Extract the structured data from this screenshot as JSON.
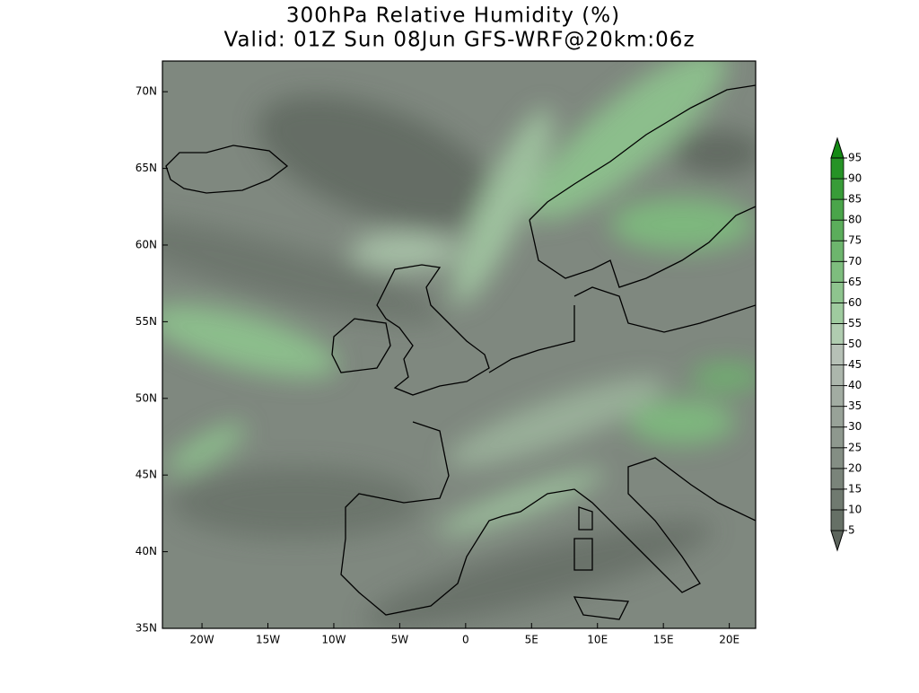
{
  "title": "300hPa Relative Humidity (%)",
  "subtitle": "Valid: 01Z Sun 08Jun GFS-WRF@20km:06z",
  "lon_range": [
    -23,
    22
  ],
  "lat_range": [
    35,
    72
  ],
  "lon_ticks": [
    {
      "value": -20,
      "label": "20W"
    },
    {
      "value": -15,
      "label": "15W"
    },
    {
      "value": -10,
      "label": "10W"
    },
    {
      "value": -5,
      "label": "5W"
    },
    0,
    {
      "value": 5,
      "label": "5E"
    },
    {
      "value": 10,
      "label": "10E"
    },
    {
      "value": 15,
      "label": "15E"
    },
    {
      "value": 20,
      "label": "20E"
    }
  ],
  "lat_ticks": [
    {
      "value": 35,
      "label": "35N"
    },
    {
      "value": 40,
      "label": "40N"
    },
    {
      "value": 45,
      "label": "45N"
    },
    {
      "value": 50,
      "label": "50N"
    },
    {
      "value": 55,
      "label": "55N"
    },
    {
      "value": 60,
      "label": "60N"
    },
    {
      "value": 65,
      "label": "65N"
    },
    {
      "value": 70,
      "label": "70N"
    }
  ],
  "colorbar": {
    "levels": [
      5,
      10,
      15,
      20,
      25,
      30,
      35,
      40,
      45,
      50,
      55,
      60,
      65,
      70,
      75,
      80,
      85,
      90,
      95
    ],
    "colors": [
      "#5c645c",
      "#667066",
      "#707a70",
      "#7a847a",
      "#848e84",
      "#8e988e",
      "#98a298",
      "#a2aca2",
      "#acb6ac",
      "#b6c0b6",
      "#b0ccb0",
      "#9fcb9f",
      "#8ec48e",
      "#7ebd7e",
      "#6db56d",
      "#5bad5b",
      "#4aa54a",
      "#389c38",
      "#269326",
      "#148a14"
    ]
  }
}
